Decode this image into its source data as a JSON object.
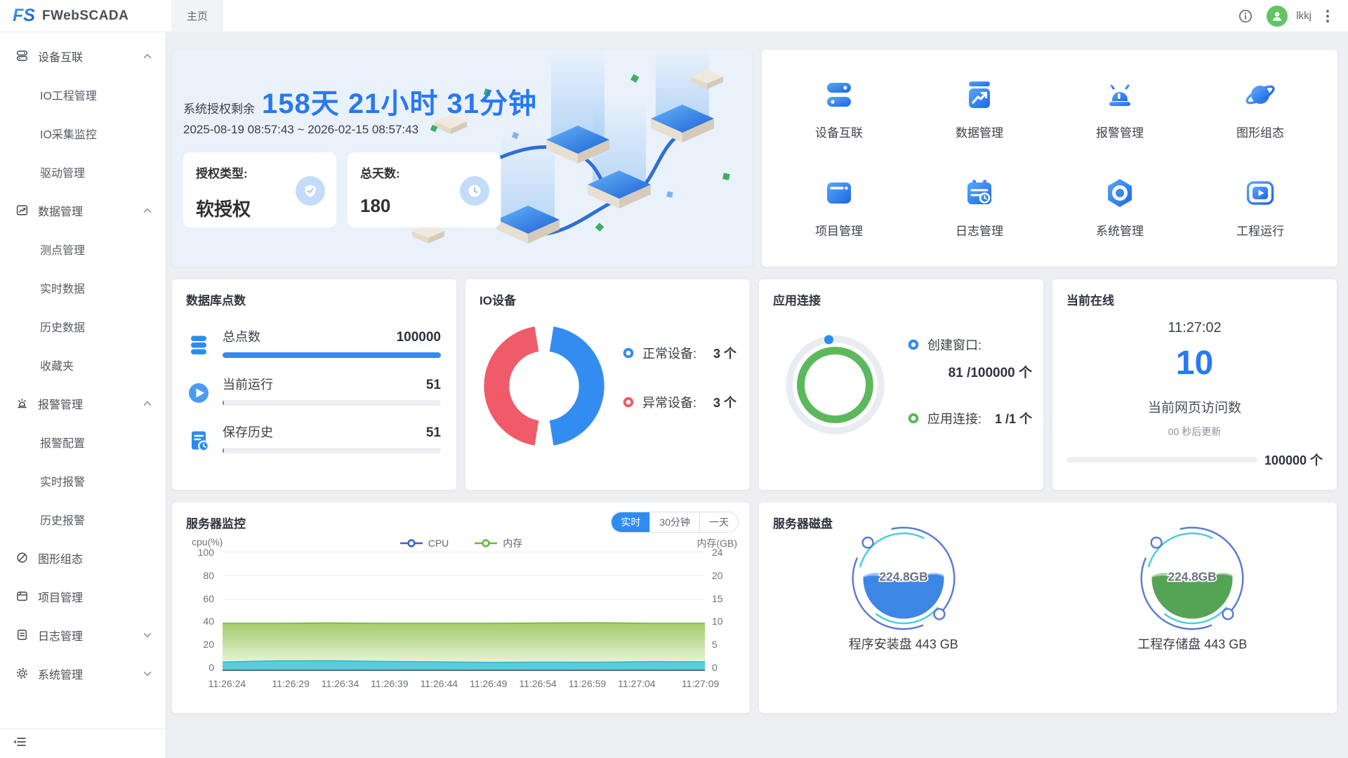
{
  "header": {
    "logo_text": "FS",
    "app_name": "FWebSCADA",
    "tab_home": "主页",
    "username": "lkkj"
  },
  "sidebar": {
    "sections": [
      {
        "label": "设备互联",
        "icon": "devices-icon",
        "children": [
          "IO工程管理",
          "IO采集监控",
          "驱动管理"
        ]
      },
      {
        "label": "数据管理",
        "icon": "data-icon",
        "children": [
          "测点管理",
          "实时数据",
          "历史数据",
          "收藏夹"
        ]
      },
      {
        "label": "报警管理",
        "icon": "alarm-icon",
        "children": [
          "报警配置",
          "实时报警",
          "历史报警"
        ]
      },
      {
        "label": "图形组态",
        "icon": "graphics-icon",
        "children": []
      },
      {
        "label": "项目管理",
        "icon": "project-icon",
        "children": []
      },
      {
        "label": "日志管理",
        "icon": "log-icon",
        "children": []
      },
      {
        "label": "系统管理",
        "icon": "system-icon",
        "children": []
      }
    ]
  },
  "license": {
    "prefix": "系统授权剩余",
    "remaining": "158天 21小时 31分钟",
    "period": "2025-08-19 08:57:43 ~ 2026-02-15 08:57:43",
    "type_label": "授权类型:",
    "type_value": "软授权",
    "days_label": "总天数:",
    "days_value": "180"
  },
  "quick_nav": {
    "items": [
      {
        "label": "设备互联",
        "icon": "devices-icon"
      },
      {
        "label": "数据管理",
        "icon": "data-icon"
      },
      {
        "label": "报警管理",
        "icon": "alarm-icon"
      },
      {
        "label": "图形组态",
        "icon": "graphics-icon"
      },
      {
        "label": "项目管理",
        "icon": "project-icon"
      },
      {
        "label": "日志管理",
        "icon": "log-icon"
      },
      {
        "label": "系统管理",
        "icon": "system-icon"
      },
      {
        "label": "工程运行",
        "icon": "run-icon"
      }
    ]
  },
  "db_points": {
    "title": "数据库点数",
    "rows": [
      {
        "label": "总点数",
        "value": "100000",
        "pct": 100,
        "icon": "database-icon"
      },
      {
        "label": "当前运行",
        "value": "51",
        "pct": 0.7,
        "icon": "play-icon"
      },
      {
        "label": "保存历史",
        "value": "51",
        "pct": 0.7,
        "icon": "history-icon"
      }
    ]
  },
  "io_devices": {
    "title": "IO设备",
    "normal_label": "正常设备:",
    "normal_value": "3 个",
    "normal_color": "#338df0",
    "abnormal_label": "异常设备:",
    "abnormal_value": "3 个",
    "abnormal_color": "#f05b6a"
  },
  "app_conn": {
    "title": "应用连接",
    "window_label": "创建窗口:",
    "window_value": "81 /100000 个",
    "window_color": "#2d8cf0",
    "conn_label": "应用连接:",
    "conn_value": "1 /1 个",
    "conn_color": "#5cb85c"
  },
  "online": {
    "title": "当前在线",
    "time": "11:27:02",
    "count": "10",
    "caption": "当前网页访问数",
    "refresh": "00 秒后更新",
    "max": "100000 个"
  },
  "server_monitor": {
    "title": "服务器监控",
    "range_buttons": [
      "实时",
      "30分钟",
      "一天"
    ],
    "active_range": "实时"
  },
  "chart_data": {
    "type": "area",
    "title": "服务器监控",
    "x": [
      "11:26:24",
      "11:26:29",
      "11:26:34",
      "11:26:39",
      "11:26:44",
      "11:26:49",
      "11:26:54",
      "11:26:59",
      "11:27:04",
      "11:27:09"
    ],
    "series": [
      {
        "name": "CPU",
        "axis": "left",
        "unit": "%",
        "color": "#55cbdb",
        "values": [
          7.5,
          8.5,
          8.6,
          8.0,
          7.6,
          7.2,
          7.4,
          7.3,
          7.8,
          7.6
        ]
      },
      {
        "name": "内存",
        "axis": "right",
        "unit": "GB",
        "color": "#8cc152",
        "values": [
          9.6,
          9.6,
          9.65,
          9.6,
          9.6,
          9.6,
          9.65,
          9.7,
          9.6,
          9.6
        ]
      }
    ],
    "left_axis": {
      "label": "cpu(%)",
      "ticks": [
        "100",
        "80",
        "60",
        "40",
        "20",
        "0"
      ],
      "min": 0,
      "max": 100
    },
    "right_axis": {
      "label": "内存(GB)",
      "ticks": [
        "24",
        "20",
        "15",
        "10",
        "5",
        "0"
      ],
      "min": 0,
      "max": 24
    },
    "legend": [
      "CPU",
      "内存"
    ],
    "legend_colors": [
      "#3a62c8",
      "#67b83f"
    ],
    "grid": true
  },
  "server_disk": {
    "title": "服务器磁盘",
    "disks": [
      {
        "value": "224.8GB",
        "label": "程序安装盘 443 GB",
        "color": "#3d87e4"
      },
      {
        "value": "224.8GB",
        "label": "工程存储盘 443 GB",
        "color": "#55a455"
      }
    ]
  }
}
